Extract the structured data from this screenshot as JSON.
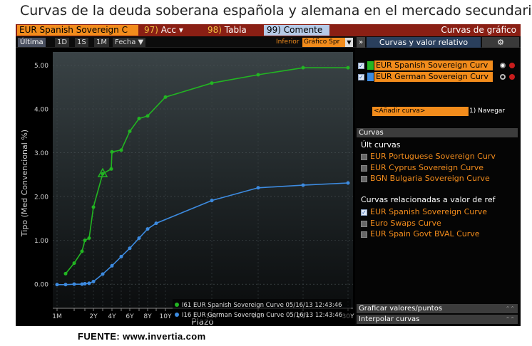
{
  "title": "Curvas de la deuda soberana española y alemana en el mercado secundario",
  "source": "FUENTE: www.invertia.com",
  "toolbar": {
    "security": "EUR Spanish Sovereign C",
    "acc_num": "97)",
    "acc_label": "Acc",
    "acc_arrow": "▾",
    "tabla_num": "98)",
    "tabla_label": "Tabla",
    "comente_num": "99)",
    "comente_label": "Comente",
    "right_title": "Curvas de gráfico"
  },
  "range_bar": {
    "buttons": [
      "Última",
      "1D",
      "1S",
      "1M",
      "Fecha ▼"
    ],
    "inferior_label": "Inferior",
    "inferior_value": "Gráfico Spr",
    "panel_tab": "Curvas y valor relativo",
    "gear": "⚙"
  },
  "right_panel": {
    "curves": [
      {
        "label": "EUR Spanish Sovereign Curv",
        "color": "#22b522",
        "checked": true
      },
      {
        "label": "EUR German Sovereign Curv",
        "color": "#3d8be0",
        "checked": true
      }
    ],
    "add_curve": "<Añadir curva>",
    "navigate": "1) Navegar",
    "curvas_header": "Curvas",
    "ult_curvas_title": "Últ curvas",
    "ult_curvas": [
      {
        "label": "EUR Portuguese Sovereign Curv",
        "checked": false
      },
      {
        "label": "EUR Cyprus Sovereign Curve",
        "checked": false
      },
      {
        "label": "BGN Bulgaria Sovereign Curve",
        "checked": false
      }
    ],
    "related_title": "Curvas relacionadas a valor de ref",
    "related": [
      {
        "label": "EUR Spanish Sovereign Curve",
        "checked": true
      },
      {
        "label": "Euro Swaps Curve",
        "checked": false
      },
      {
        "label": "EUR Spain Govt BVAL Curve",
        "checked": false
      }
    ],
    "bottom_sections": [
      "Graficar valores/puntos",
      "Interpolar curvas"
    ]
  },
  "colors": {
    "spain": "#22b522",
    "germany": "#3d8be0",
    "accent_orange": "#f28c1c",
    "header_red": "#8a1f14"
  },
  "chart_data": {
    "type": "line",
    "xlabel": "Plazo",
    "ylabel": "Tipo (Med Convencional %)",
    "x_ticks": [
      "1M",
      "6M",
      "1Y",
      "2Y",
      "3Y",
      "4Y",
      "5Y",
      "6Y",
      "7Y",
      "8Y",
      "9Y",
      "10Y",
      "15Y",
      "20Y",
      "25Y",
      "30Y"
    ],
    "x_tick_labels": [
      "1M",
      "",
      "",
      "2Y",
      "",
      "4Y",
      "",
      "6Y",
      "",
      "8Y",
      "",
      "10Y",
      "15Y",
      "20Y",
      "25Y",
      "30Y"
    ],
    "y_ticks": [
      0.0,
      1.0,
      2.0,
      3.0,
      4.0,
      5.0
    ],
    "y_tick_labels": [
      "0.00",
      "1.00",
      "2.00",
      "3.00",
      "4.00",
      "5.00"
    ],
    "ylim": [
      -0.55,
      5.3
    ],
    "grid": true,
    "legend_position": "bottom-right",
    "series": [
      {
        "name": "I61 EUR Spanish Sovereign Curve 05/16/13 12:43:46",
        "color": "#22b522",
        "points": [
          [
            "3M",
            0.24
          ],
          [
            "6M",
            0.48
          ],
          [
            "9M",
            0.75
          ],
          [
            "1Y",
            1.0
          ],
          [
            "18M",
            1.05
          ],
          [
            "2Y",
            1.76
          ],
          [
            "3Y",
            2.52
          ],
          [
            "3.5Y",
            2.63
          ],
          [
            "4Y",
            3.02
          ],
          [
            "5Y",
            3.06
          ],
          [
            "6Y",
            3.49
          ],
          [
            "7Y",
            3.78
          ],
          [
            "8Y",
            3.84
          ],
          [
            "10Y",
            4.27
          ],
          [
            "15Y",
            4.59
          ],
          [
            "20Y",
            4.78
          ],
          [
            "25Y",
            4.94
          ],
          [
            "30Y",
            4.94
          ]
        ],
        "marker_at": "3Y"
      },
      {
        "name": "I16 EUR German Sovereign Curve 05/16/13 12:43:46",
        "color": "#3d8be0",
        "points": [
          [
            "1M",
            -0.01
          ],
          [
            "3M",
            -0.01
          ],
          [
            "6M",
            0.0
          ],
          [
            "9M",
            0.0
          ],
          [
            "1Y",
            0.01
          ],
          [
            "18M",
            0.02
          ],
          [
            "2Y",
            0.06
          ],
          [
            "3Y",
            0.23
          ],
          [
            "4Y",
            0.42
          ],
          [
            "5Y",
            0.63
          ],
          [
            "6Y",
            0.82
          ],
          [
            "7Y",
            1.05
          ],
          [
            "8Y",
            1.26
          ],
          [
            "9Y",
            1.39
          ],
          [
            "15Y",
            1.91
          ],
          [
            "20Y",
            2.2
          ],
          [
            "25Y",
            2.26
          ],
          [
            "30Y",
            2.31
          ]
        ]
      }
    ]
  }
}
